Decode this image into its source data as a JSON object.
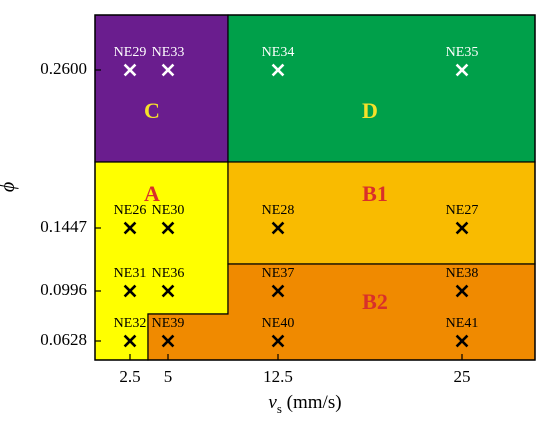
{
  "chart_data": {
    "type": "scatter",
    "title": "",
    "xlabel_main": "v",
    "xlabel_sub": "s",
    "xlabel_unit": " (mm/s)",
    "ylabel": "ϕ",
    "x_ticks": [
      {
        "value": 2.5,
        "label": "2.5"
      },
      {
        "value": 5,
        "label": "5"
      },
      {
        "value": 12.5,
        "label": "12.5"
      },
      {
        "value": 25,
        "label": "25"
      }
    ],
    "y_ticks": [
      {
        "value": 0.0628,
        "label": "0.0628"
      },
      {
        "value": 0.0996,
        "label": "0.0996"
      },
      {
        "value": 0.1447,
        "label": "0.1447"
      },
      {
        "value": 0.26,
        "label": "0.2600"
      }
    ],
    "points": [
      {
        "name": "NE29",
        "x": 2.5,
        "y": 0.26,
        "region": "C"
      },
      {
        "name": "NE33",
        "x": 5,
        "y": 0.26,
        "region": "C"
      },
      {
        "name": "NE34",
        "x": 12.5,
        "y": 0.26,
        "region": "D"
      },
      {
        "name": "NE35",
        "x": 25,
        "y": 0.26,
        "region": "D"
      },
      {
        "name": "NE26",
        "x": 2.5,
        "y": 0.1447,
        "region": "A"
      },
      {
        "name": "NE30",
        "x": 5,
        "y": 0.1447,
        "region": "A"
      },
      {
        "name": "NE28",
        "x": 12.5,
        "y": 0.1447,
        "region": "B1"
      },
      {
        "name": "NE27",
        "x": 25,
        "y": 0.1447,
        "region": "B1"
      },
      {
        "name": "NE31",
        "x": 2.5,
        "y": 0.0996,
        "region": "A"
      },
      {
        "name": "NE36",
        "x": 5,
        "y": 0.0996,
        "region": "A"
      },
      {
        "name": "NE37",
        "x": 12.5,
        "y": 0.0996,
        "region": "B2"
      },
      {
        "name": "NE38",
        "x": 25,
        "y": 0.0996,
        "region": "B2"
      },
      {
        "name": "NE32",
        "x": 2.5,
        "y": 0.0628,
        "region": "A"
      },
      {
        "name": "NE39",
        "x": 5,
        "y": 0.0628,
        "region": "B2"
      },
      {
        "name": "NE40",
        "x": 12.5,
        "y": 0.0628,
        "region": "B2"
      },
      {
        "name": "NE41",
        "x": 25,
        "y": 0.0628,
        "region": "B2"
      }
    ],
    "regions": [
      {
        "label": "C",
        "color": "#6a1d8e",
        "label_color": "#f5e12a"
      },
      {
        "label": "D",
        "color": "#00a04a",
        "label_color": "#f5e12a"
      },
      {
        "label": "A",
        "color": "#ffff00",
        "label_color": "#d9302a"
      },
      {
        "label": "B1",
        "color": "#f9bb00",
        "label_color": "#d9302a"
      },
      {
        "label": "B2",
        "color": "#f08a00",
        "label_color": "#d9302a"
      }
    ],
    "grid": false,
    "legend": "none"
  }
}
